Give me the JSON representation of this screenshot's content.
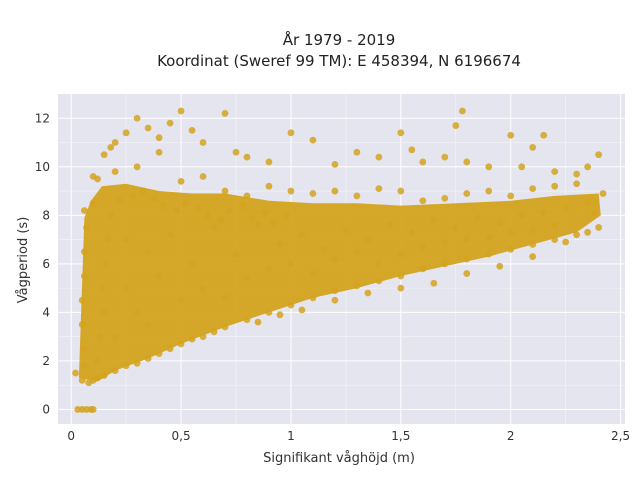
{
  "chart_data": {
    "type": "scatter",
    "title_line1": "År 1979 - 2019",
    "title_line2": "Koordinat (Sweref 99 TM): E 458394, N 6196674",
    "xlabel": "Signifikant våghöjd (m)",
    "ylabel": "Vågperiod (s)",
    "xlim": [
      -0.06,
      2.52
    ],
    "ylim": [
      -0.6,
      13.0
    ],
    "xticks": [
      0,
      0.5,
      1,
      1.5,
      2,
      2.5
    ],
    "xtick_labels": [
      "0",
      "0,5",
      "1",
      "1,5",
      "2",
      "2,5"
    ],
    "yticks": [
      0,
      2,
      4,
      6,
      8,
      10,
      12
    ],
    "ytick_labels": [
      "0",
      "2",
      "4",
      "6",
      "8",
      "10",
      "12"
    ],
    "grid": true,
    "marker_color": "#D4A31E",
    "plot_background": "#E5E5EF",
    "points": [
      [
        0.02,
        1.5
      ],
      [
        0.03,
        0.0
      ],
      [
        0.05,
        0.0
      ],
      [
        0.07,
        0.0
      ],
      [
        0.09,
        0.0
      ],
      [
        0.1,
        0.0
      ],
      [
        0.05,
        1.2
      ],
      [
        0.06,
        1.8
      ],
      [
        0.06,
        2.5
      ],
      [
        0.05,
        3.5
      ],
      [
        0.05,
        4.5
      ],
      [
        0.06,
        5.5
      ],
      [
        0.06,
        6.5
      ],
      [
        0.07,
        7.5
      ],
      [
        0.06,
        8.2
      ],
      [
        0.08,
        1.1
      ],
      [
        0.1,
        1.2
      ],
      [
        0.12,
        1.3
      ],
      [
        0.15,
        1.4
      ],
      [
        0.2,
        1.6
      ],
      [
        0.25,
        1.8
      ],
      [
        0.3,
        1.9
      ],
      [
        0.35,
        2.1
      ],
      [
        0.4,
        2.3
      ],
      [
        0.45,
        2.5
      ],
      [
        0.5,
        2.7
      ],
      [
        0.55,
        2.9
      ],
      [
        0.6,
        3.0
      ],
      [
        0.65,
        3.2
      ],
      [
        0.7,
        3.4
      ],
      [
        0.8,
        3.7
      ],
      [
        0.9,
        4.0
      ],
      [
        1.0,
        4.3
      ],
      [
        1.1,
        4.6
      ],
      [
        1.2,
        4.9
      ],
      [
        1.3,
        5.1
      ],
      [
        1.4,
        5.3
      ],
      [
        1.5,
        5.5
      ],
      [
        1.6,
        5.8
      ],
      [
        1.7,
        6.0
      ],
      [
        1.8,
        6.2
      ],
      [
        1.9,
        6.4
      ],
      [
        2.0,
        6.6
      ],
      [
        2.1,
        6.8
      ],
      [
        2.2,
        7.0
      ],
      [
        2.3,
        7.2
      ],
      [
        2.4,
        7.5
      ],
      [
        0.1,
        8.5
      ],
      [
        0.12,
        9.5
      ],
      [
        0.15,
        10.5
      ],
      [
        0.18,
        10.8
      ],
      [
        0.2,
        11.0
      ],
      [
        0.25,
        11.4
      ],
      [
        0.3,
        12.0
      ],
      [
        0.35,
        11.6
      ],
      [
        0.4,
        11.2
      ],
      [
        0.45,
        11.8
      ],
      [
        0.5,
        12.3
      ],
      [
        0.55,
        11.5
      ],
      [
        0.6,
        11.0
      ],
      [
        0.7,
        12.2
      ],
      [
        0.75,
        10.6
      ],
      [
        0.8,
        10.4
      ],
      [
        0.9,
        10.2
      ],
      [
        1.0,
        11.4
      ],
      [
        1.1,
        11.1
      ],
      [
        1.2,
        10.1
      ],
      [
        1.3,
        10.6
      ],
      [
        1.4,
        10.4
      ],
      [
        1.5,
        11.4
      ],
      [
        1.55,
        10.7
      ],
      [
        1.6,
        10.2
      ],
      [
        1.7,
        10.4
      ],
      [
        1.75,
        11.7
      ],
      [
        1.78,
        12.3
      ],
      [
        1.8,
        10.2
      ],
      [
        1.9,
        10.0
      ],
      [
        2.0,
        11.3
      ],
      [
        2.05,
        10.0
      ],
      [
        2.1,
        10.8
      ],
      [
        2.15,
        11.3
      ],
      [
        2.2,
        9.8
      ],
      [
        2.3,
        9.7
      ],
      [
        2.35,
        10.0
      ],
      [
        2.4,
        10.5
      ],
      [
        2.42,
        8.9
      ],
      [
        2.38,
        8.1
      ],
      [
        0.1,
        9.6
      ],
      [
        0.2,
        9.8
      ],
      [
        0.3,
        10.0
      ],
      [
        0.4,
        10.6
      ],
      [
        0.5,
        9.4
      ],
      [
        0.6,
        9.6
      ],
      [
        0.7,
        9.0
      ],
      [
        0.8,
        8.8
      ],
      [
        0.9,
        9.2
      ],
      [
        1.0,
        9.0
      ],
      [
        1.1,
        8.9
      ],
      [
        1.2,
        9.0
      ],
      [
        1.3,
        8.8
      ],
      [
        1.4,
        9.1
      ],
      [
        1.5,
        9.0
      ],
      [
        1.6,
        8.6
      ],
      [
        1.7,
        8.7
      ],
      [
        1.8,
        8.9
      ],
      [
        1.9,
        9.0
      ],
      [
        2.0,
        8.8
      ],
      [
        2.1,
        9.1
      ],
      [
        2.2,
        9.2
      ],
      [
        2.3,
        9.3
      ],
      [
        0.25,
        7.0
      ],
      [
        0.35,
        6.5
      ],
      [
        0.45,
        7.2
      ],
      [
        0.55,
        6.0
      ],
      [
        0.65,
        7.5
      ],
      [
        0.75,
        6.4
      ],
      [
        0.85,
        7.6
      ],
      [
        0.95,
        6.8
      ],
      [
        1.05,
        7.2
      ],
      [
        1.15,
        6.6
      ],
      [
        1.25,
        7.4
      ],
      [
        1.35,
        7.0
      ],
      [
        1.45,
        7.6
      ],
      [
        1.55,
        7.3
      ],
      [
        1.65,
        7.8
      ],
      [
        1.75,
        7.5
      ],
      [
        1.85,
        7.9
      ],
      [
        1.95,
        7.7
      ],
      [
        2.05,
        8.0
      ],
      [
        2.15,
        8.1
      ],
      [
        2.25,
        8.3
      ],
      [
        2.35,
        8.5
      ],
      [
        0.15,
        4.0
      ],
      [
        0.2,
        3.0
      ],
      [
        0.25,
        5.0
      ],
      [
        0.3,
        4.0
      ],
      [
        0.35,
        3.5
      ],
      [
        0.4,
        5.5
      ],
      [
        0.5,
        4.5
      ],
      [
        0.6,
        5.0
      ],
      [
        0.7,
        4.6
      ],
      [
        0.8,
        5.4
      ],
      [
        0.9,
        5.8
      ],
      [
        1.0,
        6.0
      ],
      [
        1.1,
        5.6
      ],
      [
        1.2,
        6.2
      ],
      [
        1.3,
        6.5
      ],
      [
        1.4,
        6.0
      ],
      [
        1.5,
        6.4
      ],
      [
        1.6,
        6.7
      ],
      [
        1.7,
        6.9
      ],
      [
        1.8,
        7.0
      ],
      [
        1.9,
        7.1
      ],
      [
        2.0,
        7.3
      ],
      [
        2.1,
        7.4
      ],
      [
        2.2,
        7.6
      ],
      [
        0.12,
        2.0
      ],
      [
        0.13,
        3.0
      ],
      [
        0.14,
        5.0
      ],
      [
        0.16,
        6.0
      ],
      [
        0.17,
        7.0
      ],
      [
        0.18,
        8.0
      ],
      [
        0.22,
        8.6
      ],
      [
        0.28,
        8.8
      ],
      [
        0.33,
        9.0
      ],
      [
        0.38,
        8.7
      ],
      [
        0.42,
        8.4
      ],
      [
        0.48,
        8.2
      ],
      [
        0.52,
        8.5
      ],
      [
        0.58,
        8.3
      ],
      [
        0.62,
        8.0
      ],
      [
        0.68,
        7.8
      ],
      [
        0.72,
        8.2
      ],
      [
        0.78,
        8.4
      ],
      [
        0.82,
        7.9
      ],
      [
        0.88,
        8.1
      ],
      [
        0.92,
        7.7
      ],
      [
        0.98,
        8.0
      ],
      [
        1.65,
        5.2
      ],
      [
        1.8,
        5.6
      ],
      [
        1.95,
        5.9
      ],
      [
        2.1,
        6.3
      ],
      [
        2.25,
        6.9
      ],
      [
        2.35,
        7.3
      ],
      [
        1.5,
        5.0
      ],
      [
        1.35,
        4.8
      ],
      [
        1.2,
        4.5
      ],
      [
        1.05,
        4.1
      ],
      [
        0.95,
        3.9
      ],
      [
        0.85,
        3.6
      ]
    ]
  }
}
